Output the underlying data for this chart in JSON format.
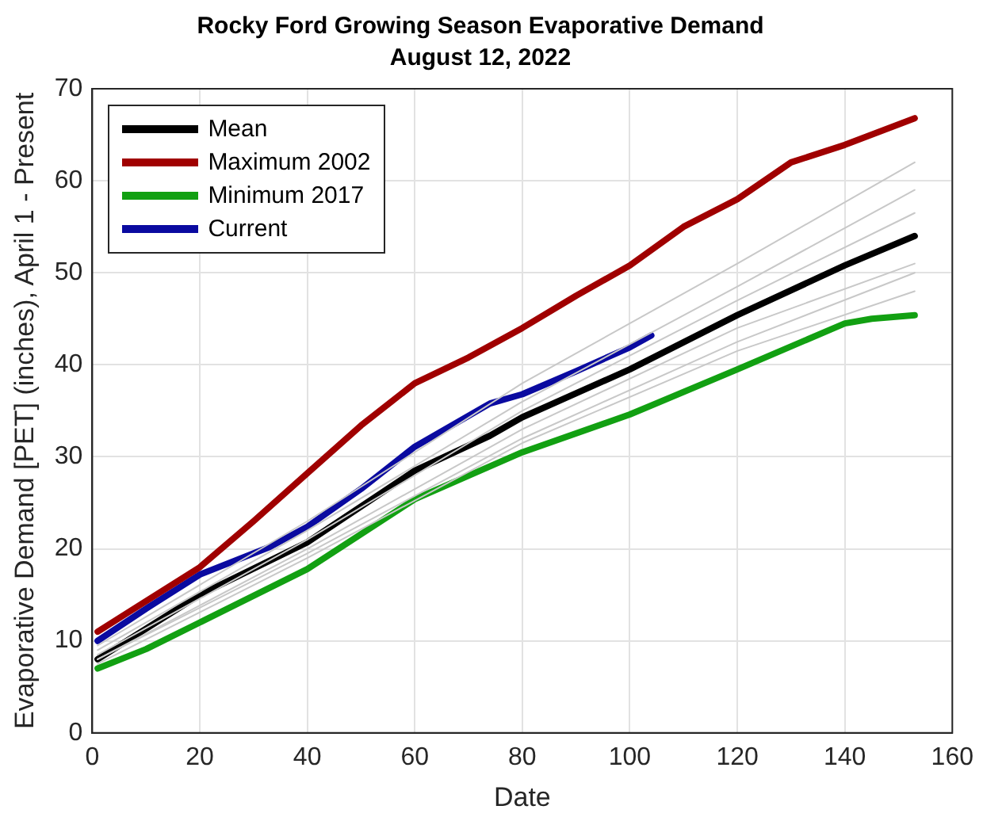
{
  "chart_data": {
    "type": "line",
    "title": "Rocky Ford Growing Season Evaporative Demand",
    "subtitle": "August 12, 2022",
    "xlabel": "Date",
    "ylabel": "Evaporative Demand [PET] (inches), April 1 - Present",
    "xlim": [
      0,
      160
    ],
    "xticks": [
      0,
      20,
      40,
      60,
      80,
      100,
      120,
      140,
      160
    ],
    "ylim": [
      0,
      70
    ],
    "yticks": [
      0,
      10,
      20,
      30,
      40,
      50,
      60,
      70
    ],
    "grid": true,
    "legend": "top left",
    "series": [
      {
        "color": "#c8c8c8",
        "x": [
          1,
          40,
          80,
          120,
          153
        ],
        "values": [
          9.5,
          23,
          38,
          51,
          62
        ]
      },
      {
        "color": "#c8c8c8",
        "x": [
          1,
          40,
          80,
          120,
          153
        ],
        "values": [
          9,
          22,
          36,
          48.5,
          59
        ]
      },
      {
        "color": "#c8c8c8",
        "x": [
          1,
          40,
          80,
          120,
          153
        ],
        "values": [
          8.5,
          21,
          35,
          47,
          56.5
        ]
      },
      {
        "color": "#c8c8c8",
        "x": [
          1,
          40,
          80,
          120,
          153
        ],
        "values": [
          8,
          20,
          33,
          44,
          51
        ]
      },
      {
        "color": "#c8c8c8",
        "x": [
          1,
          40,
          80,
          120,
          153
        ],
        "values": [
          7.5,
          19,
          31.5,
          41.5,
          48
        ]
      },
      {
        "color": "#c8c8c8",
        "x": [
          1,
          40,
          80,
          120,
          153
        ],
        "values": [
          8,
          19.5,
          32,
          42.5,
          50
        ]
      },
      {
        "name": "Mean",
        "color": "#000000",
        "x": [
          1,
          20,
          40,
          60,
          74,
          80,
          100,
          120,
          140,
          153
        ],
        "values": [
          8,
          15,
          20.7,
          28.5,
          32.3,
          34.3,
          39.5,
          45.4,
          50.8,
          54
        ]
      },
      {
        "name": "Maximum 2002",
        "color": "#a00000",
        "x": [
          1,
          20,
          30,
          40,
          50,
          60,
          70,
          80,
          90,
          100,
          110,
          120,
          130,
          140,
          153
        ],
        "values": [
          11,
          18,
          23,
          28.2,
          33.4,
          38,
          40.8,
          44,
          47.5,
          50.8,
          55,
          58,
          62,
          63.9,
          66.8
        ]
      },
      {
        "name": "Minimum 2017",
        "color": "#12a012",
        "x": [
          1,
          10,
          20,
          40,
          60,
          80,
          100,
          120,
          140,
          145,
          153
        ],
        "values": [
          7,
          9.1,
          12,
          17.8,
          25.4,
          30.5,
          34.6,
          39.5,
          44.5,
          45,
          45.4
        ]
      },
      {
        "name": "Current",
        "color": "#0a0aa0",
        "x": [
          1,
          10,
          20,
          33,
          40,
          50,
          60,
          74,
          80,
          90,
          100,
          104
        ],
        "values": [
          10,
          13.5,
          17.2,
          20.2,
          22.4,
          26.5,
          31.1,
          35.8,
          36.8,
          39.3,
          41.9,
          43.2
        ]
      }
    ]
  }
}
